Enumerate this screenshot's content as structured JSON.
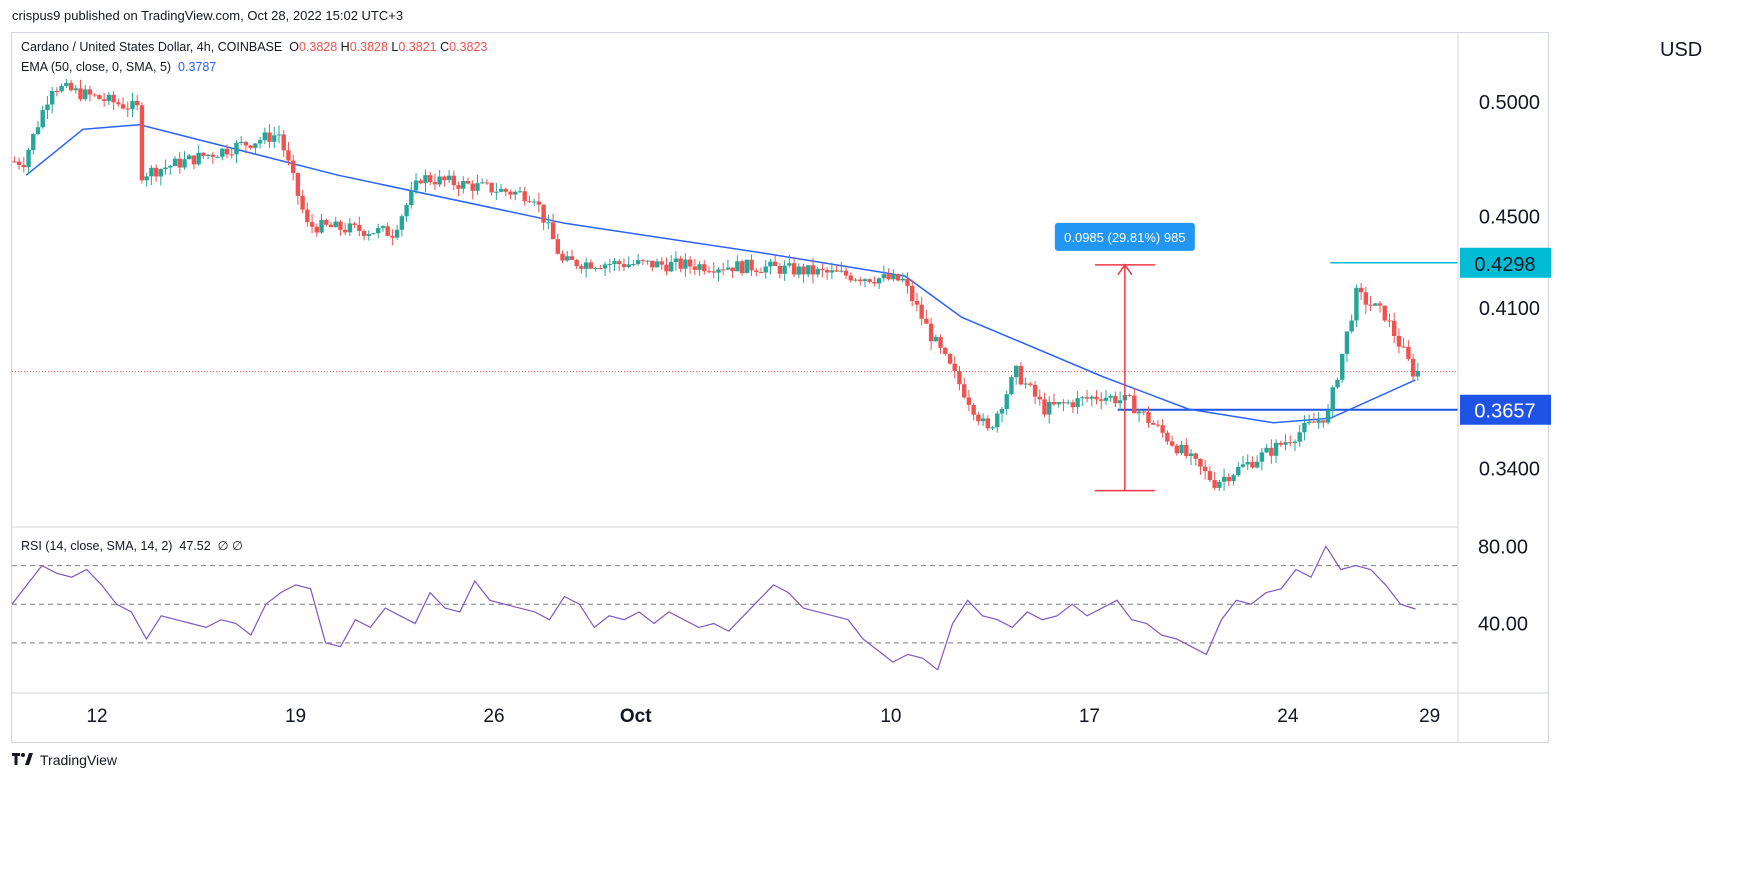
{
  "header": {
    "published": "crispus9 published on TradingView.com, Oct 28, 2022 15:02 UTC+3"
  },
  "legend": {
    "symbol": "Cardano / United States Dollar, 4h, COINBASE",
    "o_label": "O",
    "o": "0.3828",
    "h_label": "H",
    "h": "0.3828",
    "l_label": "L",
    "l": "0.3821",
    "c_label": "C",
    "c": "0.3823",
    "ema_label": "EMA (50, close, 0, SMA, 5)",
    "ema": "0.3787",
    "rsi_label": "RSI (14, close, SMA, 14, 2)",
    "rsi": "47.52",
    "rsi_extra": "∅  ∅"
  },
  "currency": "USD",
  "measure_label": "0.0985 (29.81%) 985",
  "footer": {
    "brand": "TradingView",
    "logo_icon": "tradingview-logo-icon"
  },
  "colors": {
    "up": "#26a69a",
    "down": "#ef5350",
    "ema": "#2962ff",
    "rsi": "#7e57c2",
    "resistance": "#00bcd4",
    "support": "#1e53e5",
    "measure": "#f23645",
    "label_blue": "#2196f3"
  },
  "chart_data": [
    {
      "type": "candlestick",
      "title": "Cardano / United States Dollar, 4h, COINBASE",
      "interval": "4h",
      "x_ticks": [
        "12",
        "19",
        "26",
        "Oct",
        "10",
        "17",
        "24",
        "29"
      ],
      "y_ticks": [
        0.5,
        0.45,
        0.41,
        0.34
      ],
      "y_range": [
        0.315,
        0.53
      ],
      "last_price": 0.3823,
      "price_tags": [
        0.4298,
        0.3657
      ],
      "horizontal_lines": [
        {
          "name": "resistance",
          "value": 0.4298
        },
        {
          "name": "support",
          "value": 0.3657
        }
      ],
      "measurement": {
        "from": 0.3304,
        "to": 0.4289,
        "change": 0.0985,
        "percent": 29.81,
        "bars": 985
      },
      "key_points": [
        {
          "date": "Sep 9",
          "price": 0.474
        },
        {
          "date": "Sep 10",
          "price": 0.507
        },
        {
          "date": "Sep 13",
          "price": 0.497
        },
        {
          "date": "Sep 13",
          "price": 0.468
        },
        {
          "date": "Sep 18",
          "price": 0.486
        },
        {
          "date": "Sep 19",
          "price": 0.446
        },
        {
          "date": "Sep 22",
          "price": 0.443
        },
        {
          "date": "Sep 23",
          "price": 0.467
        },
        {
          "date": "Sep 27",
          "price": 0.459
        },
        {
          "date": "Sep 28",
          "price": 0.43
        },
        {
          "date": "Oct 5",
          "price": 0.428
        },
        {
          "date": "Oct 10",
          "price": 0.422
        },
        {
          "date": "Oct 11",
          "price": 0.398
        },
        {
          "date": "Oct 13",
          "price": 0.356
        },
        {
          "date": "Oct 14",
          "price": 0.382
        },
        {
          "date": "Oct 15",
          "price": 0.366
        },
        {
          "date": "Oct 17",
          "price": 0.372
        },
        {
          "date": "Oct 18",
          "price": 0.369
        },
        {
          "date": "Oct 21",
          "price": 0.334
        },
        {
          "date": "Oct 23",
          "price": 0.348
        },
        {
          "date": "Oct 25",
          "price": 0.364
        },
        {
          "date": "Oct 26",
          "price": 0.416
        },
        {
          "date": "Oct 27",
          "price": 0.407
        },
        {
          "date": "Oct 28",
          "price": 0.3823
        }
      ],
      "ema_points": [
        {
          "date": "Sep 9",
          "value": 0.468
        },
        {
          "date": "Sep 11",
          "value": 0.488
        },
        {
          "date": "Sep 13",
          "value": 0.49
        },
        {
          "date": "Sep 20",
          "value": 0.468
        },
        {
          "date": "Sep 28",
          "value": 0.447
        },
        {
          "date": "Oct 5",
          "value": 0.434
        },
        {
          "date": "Oct 10",
          "value": 0.424
        },
        {
          "date": "Oct 12",
          "value": 0.406
        },
        {
          "date": "Oct 17",
          "value": 0.38
        },
        {
          "date": "Oct 20",
          "value": 0.366
        },
        {
          "date": "Oct 23",
          "value": 0.36
        },
        {
          "date": "Oct 25",
          "value": 0.362
        },
        {
          "date": "Oct 28",
          "value": 0.3787
        }
      ]
    },
    {
      "type": "line",
      "title": "RSI (14, close, SMA, 14, 2)",
      "y_ticks": [
        80,
        40
      ],
      "bands": [
        70,
        50,
        30
      ],
      "y_range": [
        4,
        90
      ],
      "values": [
        50,
        60,
        70,
        66,
        64,
        68,
        60,
        50,
        46,
        32,
        44,
        42,
        40,
        38,
        42,
        40,
        34,
        50,
        56,
        60,
        58,
        30,
        28,
        42,
        38,
        48,
        44,
        40,
        56,
        48,
        46,
        62,
        52,
        50,
        48,
        46,
        42,
        54,
        50,
        38,
        44,
        42,
        46,
        40,
        46,
        42,
        38,
        40,
        36,
        44,
        52,
        60,
        56,
        48,
        46,
        44,
        42,
        32,
        26,
        20,
        24,
        22,
        16,
        40,
        52,
        44,
        42,
        38,
        46,
        42,
        44,
        50,
        44,
        48,
        52,
        42,
        40,
        34,
        32,
        28,
        24,
        42,
        52,
        50,
        56,
        58,
        68,
        64,
        80,
        68,
        70,
        68,
        60,
        50,
        47.52
      ]
    }
  ]
}
